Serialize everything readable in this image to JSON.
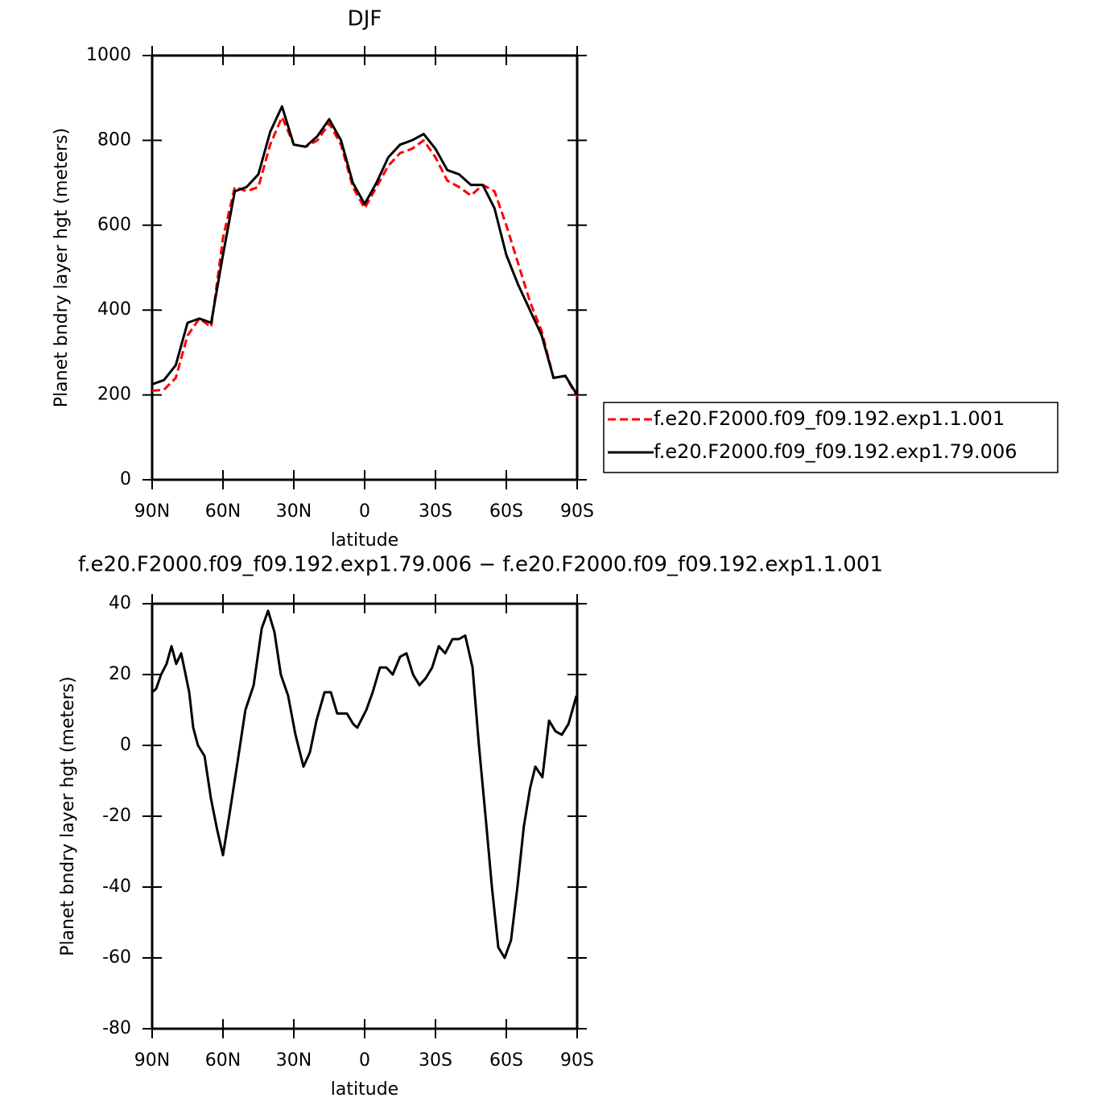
{
  "chart_data": [
    {
      "type": "line",
      "title": "DJF",
      "xlabel": "latitude",
      "ylabel": "Planet bndry layer hgt (meters)",
      "x": [
        90,
        85,
        80,
        75,
        70,
        65,
        60,
        55,
        50,
        45,
        40,
        35,
        30,
        25,
        20,
        15,
        10,
        5,
        0,
        -5,
        -10,
        -15,
        -20,
        -25,
        -30,
        -35,
        -40,
        -45,
        -50,
        -55,
        -60,
        -65,
        -70,
        -75,
        -80,
        -85,
        -90
      ],
      "series": [
        {
          "name": "f.e20.F2000.f09_f09.192.exp1.1.001",
          "color": "#ff0000",
          "style": "dashed",
          "values": [
            210,
            212,
            240,
            340,
            380,
            360,
            570,
            690,
            680,
            690,
            790,
            855,
            790,
            785,
            800,
            840,
            790,
            690,
            640,
            690,
            740,
            770,
            780,
            800,
            760,
            705,
            690,
            670,
            695,
            680,
            600,
            510,
            420,
            350,
            240,
            245,
            195
          ]
        },
        {
          "name": "f.e20.F2000.f09_f09.192.exp1.79.006",
          "color": "#000000",
          "style": "solid",
          "values": [
            225,
            235,
            270,
            370,
            380,
            370,
            530,
            680,
            690,
            720,
            820,
            880,
            790,
            785,
            810,
            850,
            800,
            700,
            650,
            700,
            760,
            790,
            800,
            815,
            780,
            730,
            720,
            695,
            695,
            640,
            530,
            460,
            400,
            340,
            240,
            245,
            200
          ]
        }
      ],
      "xlim": [
        90,
        -90
      ],
      "xticks": [
        {
          "value": 90,
          "label": "90N"
        },
        {
          "value": 60,
          "label": "60N"
        },
        {
          "value": 30,
          "label": "30N"
        },
        0,
        {
          "value": -30,
          "label": "30S"
        },
        {
          "value": -60,
          "label": "60S"
        },
        {
          "value": -90,
          "label": "90S"
        }
      ],
      "ylim": [
        0,
        1000
      ],
      "yticks": [
        0,
        200,
        400,
        600,
        800,
        1000
      ],
      "legend": "right"
    },
    {
      "type": "line",
      "title": "f.e20.F2000.f09_f09.192.exp1.79.006 − f.e20.F2000.f09_f09.192.exp1.1.001",
      "xlabel": "latitude",
      "ylabel": "Planet bndry layer hgt (meters)",
      "x": [
        90,
        88.3,
        86.2,
        83.9,
        81.8,
        79.8,
        77.7,
        74.3,
        72.6,
        70.6,
        67.8,
        65.1,
        62.4,
        60,
        56.9,
        53.9,
        50.5,
        47,
        43.6,
        40.9,
        38.2,
        35.5,
        32.4,
        29.3,
        25.9,
        23.2,
        20.4,
        17,
        14.3,
        11.6,
        7.5,
        4.8,
        3.1,
        -0.7,
        -3.4,
        -6.5,
        -9.2,
        -11.9,
        -15,
        -17.7,
        -20.5,
        -23.2,
        -25.9,
        -28.6,
        -31.4,
        -34.1,
        -37.2,
        -39.9,
        -42.6,
        -45.7,
        -48.4,
        -51.2,
        -53.9,
        -56.6,
        -59.3,
        -62,
        -64.7,
        -67.4,
        -70.1,
        -72.3,
        -75.3,
        -78.1,
        -80.8,
        -83.5,
        -86.3,
        -89.7
      ],
      "values": [
        15,
        16,
        20,
        23,
        28,
        23,
        26,
        15,
        5,
        0,
        -3,
        -15,
        -24,
        -31,
        -18,
        -5,
        10,
        17,
        33,
        38,
        32,
        20,
        14,
        3,
        -6,
        -2,
        7,
        15,
        15,
        9,
        9,
        6,
        5,
        10,
        15,
        22,
        22,
        20,
        25,
        26,
        20,
        17,
        19,
        22,
        28,
        26,
        30,
        30,
        31,
        22,
        0,
        -20,
        -40,
        -57,
        -60,
        -55,
        -40,
        -23,
        -12,
        -6,
        -9,
        7,
        4,
        3,
        6,
        14
      ],
      "color": "#000000",
      "xlim": [
        90,
        -90
      ],
      "xticks": [
        {
          "value": 90,
          "label": "90N"
        },
        {
          "value": 60,
          "label": "60N"
        },
        {
          "value": 30,
          "label": "30N"
        },
        0,
        {
          "value": -30,
          "label": "30S"
        },
        {
          "value": -60,
          "label": "60S"
        },
        {
          "value": -90,
          "label": "90S"
        }
      ],
      "ylim": [
        -80,
        40
      ],
      "yticks": [
        -80,
        -60,
        -40,
        -20,
        0,
        20,
        40
      ]
    }
  ]
}
